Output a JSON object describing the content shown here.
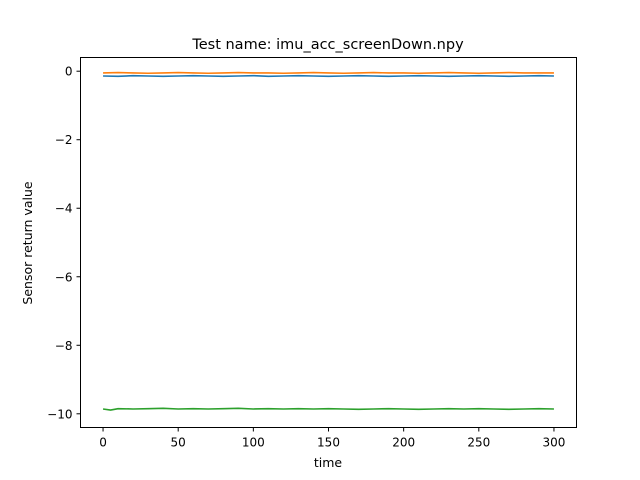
{
  "chart_data": {
    "type": "line",
    "title": "Test name: imu_acc_screenDown.npy",
    "xlabel": "time",
    "ylabel": "Sensor return value",
    "xlim": [
      -15,
      315
    ],
    "ylim": [
      -10.4,
      0.4
    ],
    "xticks": [
      0,
      50,
      100,
      150,
      200,
      250,
      300
    ],
    "yticks": [
      0,
      -2,
      -4,
      -6,
      -8,
      -10
    ],
    "xtick_labels": [
      "0",
      "50",
      "100",
      "150",
      "200",
      "250",
      "300"
    ],
    "ytick_labels": [
      "0",
      "−2",
      "−4",
      "−6",
      "−8",
      "−10"
    ],
    "grid": false,
    "legend": "none",
    "series": [
      {
        "color": "#1f77b4",
        "x": [
          0,
          10,
          20,
          30,
          40,
          50,
          60,
          70,
          80,
          90,
          100,
          110,
          120,
          130,
          140,
          150,
          160,
          170,
          180,
          190,
          200,
          210,
          220,
          230,
          240,
          250,
          260,
          270,
          280,
          290,
          300
        ],
        "y": [
          -0.14,
          -0.15,
          -0.13,
          -0.14,
          -0.15,
          -0.14,
          -0.13,
          -0.14,
          -0.15,
          -0.14,
          -0.13,
          -0.15,
          -0.14,
          -0.13,
          -0.14,
          -0.15,
          -0.14,
          -0.13,
          -0.14,
          -0.15,
          -0.14,
          -0.13,
          -0.14,
          -0.15,
          -0.14,
          -0.13,
          -0.14,
          -0.15,
          -0.14,
          -0.13,
          -0.14
        ]
      },
      {
        "color": "#ff7f0e",
        "x": [
          0,
          10,
          20,
          30,
          40,
          50,
          60,
          70,
          80,
          90,
          100,
          110,
          120,
          130,
          140,
          150,
          160,
          170,
          180,
          190,
          200,
          210,
          220,
          230,
          240,
          250,
          260,
          270,
          280,
          290,
          300
        ],
        "y": [
          -0.05,
          -0.04,
          -0.05,
          -0.06,
          -0.05,
          -0.04,
          -0.05,
          -0.06,
          -0.05,
          -0.04,
          -0.05,
          -0.05,
          -0.06,
          -0.05,
          -0.04,
          -0.05,
          -0.06,
          -0.05,
          -0.04,
          -0.05,
          -0.05,
          -0.06,
          -0.05,
          -0.04,
          -0.05,
          -0.06,
          -0.05,
          -0.04,
          -0.05,
          -0.05,
          -0.05
        ]
      },
      {
        "color": "#2ca02c",
        "x": [
          0,
          5,
          10,
          20,
          30,
          40,
          50,
          60,
          70,
          80,
          90,
          100,
          110,
          120,
          130,
          140,
          150,
          160,
          170,
          180,
          190,
          200,
          210,
          220,
          230,
          240,
          250,
          260,
          270,
          280,
          290,
          300
        ],
        "y": [
          -9.86,
          -9.89,
          -9.85,
          -9.86,
          -9.85,
          -9.84,
          -9.86,
          -9.85,
          -9.86,
          -9.85,
          -9.84,
          -9.86,
          -9.85,
          -9.86,
          -9.85,
          -9.86,
          -9.85,
          -9.86,
          -9.87,
          -9.86,
          -9.85,
          -9.86,
          -9.87,
          -9.86,
          -9.85,
          -9.86,
          -9.85,
          -9.86,
          -9.87,
          -9.86,
          -9.85,
          -9.86
        ]
      }
    ]
  }
}
